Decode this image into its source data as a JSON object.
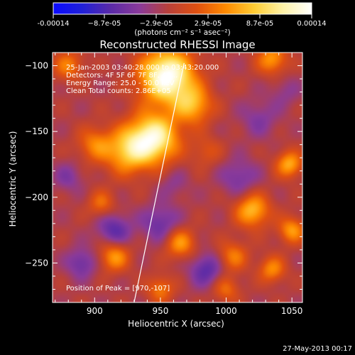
{
  "colorbar": {
    "tick_labels": [
      "-0.00014",
      "−8.7e-05",
      "−2.9e-05",
      "2.9e-05",
      "8.7e-05",
      "0.00014"
    ],
    "unit_label": "(photons cm⁻² s⁻¹ asec⁻²)",
    "range": [
      -0.00014,
      0.00014
    ],
    "colors": [
      "#0a0aff",
      "#2020d8",
      "#5a2aa8",
      "#8a3a9a",
      "#b8403a",
      "#e05010",
      "#ff8a00",
      "#ffcc33",
      "#fff3a8",
      "#ffffff"
    ]
  },
  "chart_data": {
    "type": "heatmap",
    "title": "Reconstructed RHESSI Image",
    "xlabel": "Heliocentric X (arcsec)",
    "ylabel": "Heliocentric Y (arcsec)",
    "xlim": [
      868,
      1058
    ],
    "ylim": [
      -280,
      -90
    ],
    "x_ticks": [
      900,
      950,
      1000,
      1050
    ],
    "y_ticks": [
      -100,
      -150,
      -200,
      -250
    ],
    "info_lines": [
      "25-Jan-2003 03:40:28.000 to 03:43:20.000",
      "Detectors: 4F 5F 6F 7F 8F, 4R...",
      "Energy Range: 25.0 - 50.0 keV",
      "Clean     Total counts: 2.86E+05"
    ],
    "peak_label": "Position of Peak = [970,-107]",
    "peak": [
      970,
      -107
    ],
    "limb_line": {
      "from": [
        930,
        -280
      ],
      "to": [
        968,
        -98
      ]
    },
    "sources": [
      {
        "x": 955,
        "y": -108,
        "amp": 1.0,
        "sigma": 14
      },
      {
        "x": 945,
        "y": -155,
        "amp": 0.85,
        "sigma": 13
      },
      {
        "x": 925,
        "y": -165,
        "amp": 0.55,
        "sigma": 12
      },
      {
        "x": 975,
        "y": -130,
        "amp": 0.5,
        "sigma": 10
      },
      {
        "x": 900,
        "y": -160,
        "amp": 0.35,
        "sigma": 9
      },
      {
        "x": 1035,
        "y": -95,
        "amp": 0.45,
        "sigma": 8
      },
      {
        "x": 1048,
        "y": -175,
        "amp": 0.5,
        "sigma": 7
      },
      {
        "x": 1020,
        "y": -210,
        "amp": 0.55,
        "sigma": 9
      },
      {
        "x": 1050,
        "y": -225,
        "amp": 0.45,
        "sigma": 7
      },
      {
        "x": 1035,
        "y": -255,
        "amp": 0.4,
        "sigma": 7
      },
      {
        "x": 1005,
        "y": -245,
        "amp": 0.35,
        "sigma": 8
      },
      {
        "x": 965,
        "y": -235,
        "amp": 0.45,
        "sigma": 8
      },
      {
        "x": 915,
        "y": -245,
        "amp": 0.45,
        "sigma": 8
      },
      {
        "x": 905,
        "y": -205,
        "amp": 0.3,
        "sigma": 7
      },
      {
        "x": 880,
        "y": -100,
        "amp": 0.35,
        "sigma": 8
      },
      {
        "x": 1000,
        "y": -270,
        "amp": 0.3,
        "sigma": 7
      },
      {
        "x": 950,
        "y": -270,
        "amp": 0.35,
        "sigma": 7
      },
      {
        "x": 985,
        "y": -165,
        "amp": 0.2,
        "sigma": 8
      },
      {
        "x": 915,
        "y": -225,
        "amp": -0.35,
        "sigma": 9
      },
      {
        "x": 950,
        "y": -220,
        "amp": -0.3,
        "sigma": 10
      },
      {
        "x": 985,
        "y": -255,
        "amp": -0.35,
        "sigma": 9
      },
      {
        "x": 1010,
        "y": -185,
        "amp": -0.25,
        "sigma": 10
      },
      {
        "x": 1025,
        "y": -140,
        "amp": -0.2,
        "sigma": 10
      },
      {
        "x": 890,
        "y": -250,
        "amp": -0.3,
        "sigma": 8
      },
      {
        "x": 880,
        "y": -185,
        "amp": -0.2,
        "sigma": 8
      },
      {
        "x": 1045,
        "y": -120,
        "amp": -0.15,
        "sigma": 8
      },
      {
        "x": 960,
        "y": -190,
        "amp": -0.15,
        "sigma": 8
      }
    ]
  },
  "footer": {
    "timestamp": "27-May-2013 00:17"
  }
}
